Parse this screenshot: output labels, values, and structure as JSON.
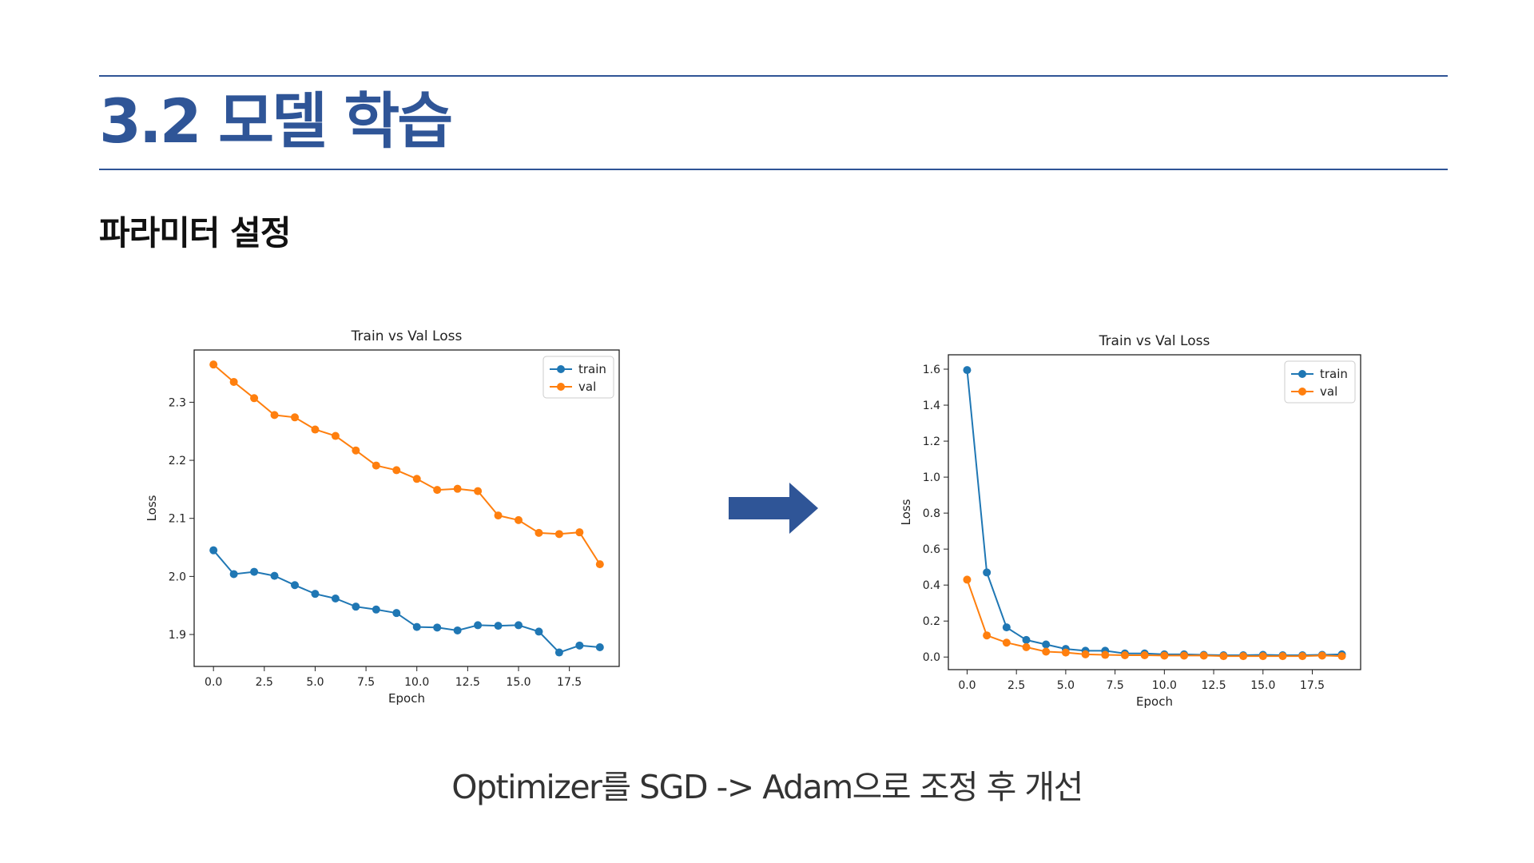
{
  "slide": {
    "title": "3.2 모델 학습",
    "subtitle": "파라미터 설정",
    "caption": "Optimizer를 SGD -> Adam으로 조정 후 개선",
    "accent_color": "#2f5597"
  },
  "arrow": {
    "icon": "right-arrow-icon",
    "color": "#2f5597"
  },
  "chart_data": [
    {
      "type": "line",
      "title": "Train vs Val Loss",
      "xlabel": "Epoch",
      "ylabel": "Loss",
      "xlim": [
        -0.95,
        19.95
      ],
      "ylim": [
        1.845,
        2.39
      ],
      "xticks": [
        0.0,
        2.5,
        5.0,
        7.5,
        10.0,
        12.5,
        15.0,
        17.5
      ],
      "xtick_labels": [
        "0.0",
        "2.5",
        "5.0",
        "7.5",
        "10.0",
        "12.5",
        "15.0",
        "17.5"
      ],
      "yticks": [
        1.9,
        2.0,
        2.1,
        2.2,
        2.3
      ],
      "ytick_labels": [
        "1.9",
        "2.0",
        "2.1",
        "2.2",
        "2.3"
      ],
      "legend_position": "top-right",
      "grid": false,
      "x": [
        0,
        1,
        2,
        3,
        4,
        5,
        6,
        7,
        8,
        9,
        10,
        11,
        12,
        13,
        14,
        15,
        16,
        17,
        18,
        19
      ],
      "series": [
        {
          "name": "train",
          "color": "#1f77b4",
          "values": [
            2.045,
            2.004,
            2.008,
            2.001,
            1.985,
            1.97,
            1.962,
            1.948,
            1.943,
            1.937,
            1.913,
            1.912,
            1.907,
            1.916,
            1.915,
            1.916,
            1.905,
            1.869,
            1.881,
            1.878
          ]
        },
        {
          "name": "val",
          "color": "#ff7f0e",
          "values": [
            2.365,
            2.335,
            2.307,
            2.278,
            2.274,
            2.253,
            2.242,
            2.217,
            2.191,
            2.183,
            2.168,
            2.149,
            2.151,
            2.147,
            2.105,
            2.097,
            2.075,
            2.073,
            2.076,
            2.021
          ]
        }
      ]
    },
    {
      "type": "line",
      "title": "Train vs Val Loss",
      "xlabel": "Epoch",
      "ylabel": "Loss",
      "xlim": [
        -0.95,
        19.95
      ],
      "ylim": [
        -0.07,
        1.68
      ],
      "xticks": [
        0.0,
        2.5,
        5.0,
        7.5,
        10.0,
        12.5,
        15.0,
        17.5
      ],
      "xtick_labels": [
        "0.0",
        "2.5",
        "5.0",
        "7.5",
        "10.0",
        "12.5",
        "15.0",
        "17.5"
      ],
      "yticks": [
        0.0,
        0.2,
        0.4,
        0.6,
        0.8,
        1.0,
        1.2,
        1.4,
        1.6
      ],
      "ytick_labels": [
        "0.0",
        "0.2",
        "0.4",
        "0.6",
        "0.8",
        "1.0",
        "1.2",
        "1.4",
        "1.6"
      ],
      "legend_position": "top-right",
      "grid": false,
      "x": [
        0,
        1,
        2,
        3,
        4,
        5,
        6,
        7,
        8,
        9,
        10,
        11,
        12,
        13,
        14,
        15,
        16,
        17,
        18,
        19
      ],
      "series": [
        {
          "name": "train",
          "color": "#1f77b4",
          "values": [
            1.595,
            0.47,
            0.165,
            0.095,
            0.07,
            0.045,
            0.035,
            0.035,
            0.02,
            0.02,
            0.015,
            0.015,
            0.012,
            0.01,
            0.01,
            0.012,
            0.01,
            0.01,
            0.012,
            0.015
          ]
        },
        {
          "name": "val",
          "color": "#ff7f0e",
          "values": [
            0.43,
            0.12,
            0.08,
            0.055,
            0.03,
            0.025,
            0.015,
            0.012,
            0.01,
            0.01,
            0.008,
            0.008,
            0.008,
            0.005,
            0.005,
            0.005,
            0.005,
            0.005,
            0.008,
            0.005
          ]
        }
      ]
    }
  ]
}
